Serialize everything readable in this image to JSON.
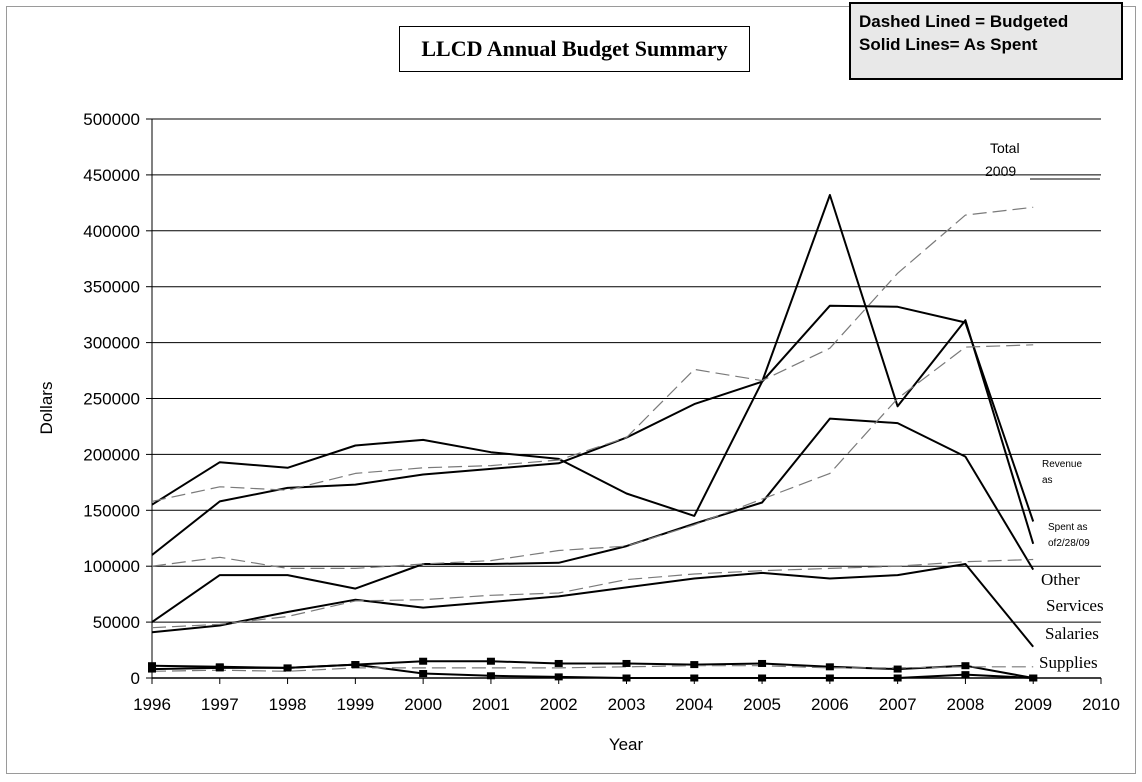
{
  "key": {
    "line1": "Dashed Lined = Budgeted",
    "line2": "Solid Lines= As Spent"
  },
  "chart_data": {
    "type": "line",
    "title": "LLCD Annual Budget Summary",
    "xlabel": "Year",
    "ylabel": "Dollars",
    "xlim": [
      1996,
      2010
    ],
    "ylim": [
      0,
      500000
    ],
    "x_ticks": [
      "1996",
      "1997",
      "1998",
      "1999",
      "2000",
      "2001",
      "2002",
      "2003",
      "2004",
      "2005",
      "2006",
      "2007",
      "2008",
      "2009",
      "2010"
    ],
    "y_ticks": [
      "0",
      "50000",
      "100000",
      "150000",
      "200000",
      "250000",
      "300000",
      "350000",
      "400000",
      "450000",
      "500000"
    ],
    "grid": true,
    "annotations": {
      "total_line1": "Total",
      "total_line2": "2009",
      "revenue_line1": "Revenue",
      "revenue_line2": "as",
      "spent_line1": "Spent as",
      "spent_line2": "of2/28/09",
      "other_line1": "Other",
      "other_line2": "Services",
      "salaries": "Salaries",
      "supplies": "Supplies"
    },
    "series": [
      {
        "key": "total_spent",
        "style": "solid",
        "markers": false,
        "x": [
          1996,
          1997,
          1998,
          1999,
          2000,
          2001,
          2002,
          2003,
          2004,
          2005,
          2006,
          2007,
          2008,
          2009
        ],
        "values": [
          155000,
          193000,
          188000,
          208000,
          213000,
          202000,
          196000,
          165000,
          145000,
          265000,
          432000,
          243000,
          320000,
          120000
        ]
      },
      {
        "key": "revenue_spent",
        "style": "solid",
        "markers": false,
        "x": [
          1996,
          1997,
          1998,
          1999,
          2000,
          2001,
          2002,
          2003,
          2004,
          2005,
          2006,
          2007,
          2008,
          2009
        ],
        "values": [
          110000,
          158000,
          170000,
          173000,
          182000,
          187000,
          192000,
          215000,
          245000,
          265000,
          333000,
          332000,
          318000,
          140000
        ]
      },
      {
        "key": "other_services_spent",
        "style": "solid",
        "markers": false,
        "x": [
          1996,
          1997,
          1998,
          1999,
          2000,
          2001,
          2002,
          2003,
          2004,
          2005,
          2006,
          2007,
          2008,
          2009
        ],
        "values": [
          50000,
          92000,
          92000,
          80000,
          102000,
          102000,
          103000,
          118000,
          138000,
          157000,
          232000,
          228000,
          198000,
          97000
        ]
      },
      {
        "key": "salaries_spent",
        "style": "solid",
        "markers": false,
        "x": [
          1996,
          1997,
          1998,
          1999,
          2000,
          2001,
          2002,
          2003,
          2004,
          2005,
          2006,
          2007,
          2008,
          2009
        ],
        "values": [
          41000,
          47000,
          59000,
          70000,
          63000,
          68000,
          73000,
          81000,
          89000,
          94000,
          89000,
          92000,
          102000,
          28000
        ]
      },
      {
        "key": "supplies_spent_a",
        "style": "solid",
        "markers": true,
        "x": [
          1996,
          1997,
          1998,
          1999,
          2000,
          2001,
          2002,
          2003,
          2004,
          2005,
          2006,
          2007,
          2008,
          2009
        ],
        "values": [
          8000,
          9000,
          9000,
          12000,
          15000,
          15000,
          13000,
          13000,
          12000,
          13000,
          10000,
          8000,
          11000,
          0
        ]
      },
      {
        "key": "supplies_spent_b",
        "style": "solid",
        "markers": true,
        "x": [
          1996,
          1997,
          1998,
          1999,
          2000,
          2001,
          2002,
          2003,
          2004,
          2005,
          2006,
          2007,
          2008,
          2009
        ],
        "values": [
          11000,
          10000,
          9000,
          12000,
          4000,
          2000,
          1000,
          0,
          0,
          0,
          0,
          0,
          3000,
          0
        ]
      },
      {
        "key": "total_budgeted",
        "style": "dashed",
        "markers": false,
        "x": [
          1996,
          1997,
          1998,
          1999,
          2000,
          2001,
          2002,
          2003,
          2004,
          2005,
          2006,
          2007,
          2008,
          2009
        ],
        "values": [
          158000,
          171000,
          168000,
          183000,
          188000,
          190000,
          195000,
          215000,
          276000,
          266000,
          295000,
          362000,
          414000,
          421000
        ]
      },
      {
        "key": "revenue_budgeted",
        "style": "dashed",
        "markers": false,
        "x": [
          1996,
          1997,
          1998,
          1999,
          2000,
          2001,
          2002,
          2003,
          2004,
          2005,
          2006,
          2007,
          2008,
          2009
        ],
        "values": [
          100000,
          108000,
          98000,
          98000,
          102000,
          105000,
          114000,
          118000,
          137000,
          160000,
          183000,
          250000,
          296000,
          298000
        ]
      },
      {
        "key": "other_services_budgeted",
        "style": "dashed",
        "markers": false,
        "x": [
          1996,
          1997,
          1998,
          1999,
          2000,
          2001,
          2002,
          2003,
          2004,
          2005,
          2006,
          2007,
          2008,
          2009
        ],
        "values": [
          45000,
          48000,
          55000,
          69000,
          70000,
          74000,
          76000,
          88000,
          93000,
          96000,
          98000,
          100000,
          104000,
          106000
        ]
      },
      {
        "key": "supplies_budgeted",
        "style": "dashed",
        "markers": false,
        "x": [
          1996,
          1997,
          1998,
          1999,
          2000,
          2001,
          2002,
          2003,
          2004,
          2005,
          2006,
          2007,
          2008,
          2009
        ],
        "values": [
          6000,
          7000,
          6000,
          9000,
          9000,
          9000,
          9000,
          10000,
          11000,
          11000,
          9000,
          9000,
          10000,
          10000
        ]
      }
    ]
  }
}
